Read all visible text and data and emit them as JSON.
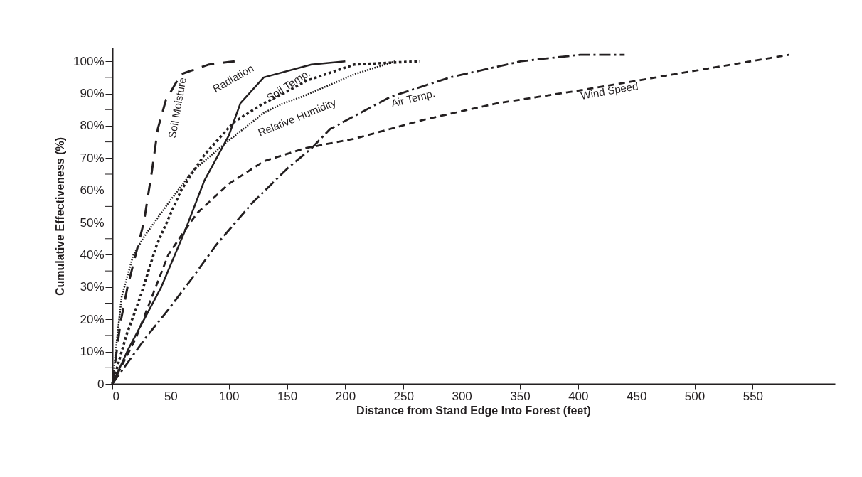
{
  "chart_data": {
    "type": "line",
    "xlabel": "Distance from Stand Edge Into Forest (feet)",
    "ylabel": "Cumulative Effectiveness (%)",
    "xlim": [
      0,
      620
    ],
    "ylim": [
      0,
      104
    ],
    "xticks": [
      0,
      50,
      100,
      150,
      200,
      250,
      300,
      350,
      400,
      450,
      500,
      550
    ],
    "yticks": [
      0,
      {
        "value": 5,
        "label": null
      },
      {
        "value": 10,
        "label": "10%"
      },
      {
        "value": 15,
        "label": null
      },
      {
        "value": 20,
        "label": "20%"
      },
      {
        "value": 25,
        "label": null
      },
      {
        "value": 30,
        "label": "30%"
      },
      {
        "value": 35,
        "label": null
      },
      {
        "value": 40,
        "label": "40%"
      },
      {
        "value": 45,
        "label": null
      },
      {
        "value": 50,
        "label": "50%"
      },
      {
        "value": 55,
        "label": null
      },
      {
        "value": 60,
        "label": "60%"
      },
      {
        "value": 65,
        "label": null
      },
      {
        "value": 70,
        "label": "70%"
      },
      {
        "value": 75,
        "label": null
      },
      {
        "value": 80,
        "label": "80%"
      },
      {
        "value": 85,
        "label": null
      },
      {
        "value": 90,
        "label": "90%"
      },
      {
        "value": 95,
        "label": null
      },
      {
        "value": 100,
        "label": "100%"
      }
    ],
    "grid": false,
    "legend": false,
    "marker": "none",
    "series": [
      {
        "name": "Soil Moisture",
        "color": "#231f20",
        "line_style": "dashed",
        "x": [
          0,
          7,
          13,
          20,
          27,
          34,
          39,
          46,
          59,
          83,
          105
        ],
        "values": [
          0,
          19,
          30,
          40,
          50,
          66,
          79,
          88,
          96,
          99,
          100
        ]
      },
      {
        "name": "Radiation",
        "color": "#231f20",
        "line_style": "solid",
        "x": [
          0,
          14,
          42,
          63,
          79,
          100,
          110,
          130,
          171,
          200
        ],
        "values": [
          0,
          11,
          30,
          48,
          63,
          77,
          87,
          95,
          99,
          100
        ]
      },
      {
        "name": "Soil Temp.",
        "color": "#231f20",
        "line_style": "dotted",
        "x": [
          0,
          12,
          24,
          38,
          59,
          79,
          104,
          130,
          147,
          167,
          208,
          264
        ],
        "values": [
          0,
          15,
          27,
          43,
          60,
          71,
          81,
          87,
          90,
          94,
          99,
          100
        ]
      },
      {
        "name": "Relative Humidity",
        "color": "#231f20",
        "line_style": "dotted",
        "x": [
          0,
          4,
          8,
          18,
          28,
          48,
          69,
          95,
          130,
          147,
          163,
          208,
          243
        ],
        "values": [
          0,
          14,
          27,
          40,
          46,
          56,
          66,
          74,
          84,
          87,
          89,
          96,
          100
        ]
      },
      {
        "name": "Air Temp.",
        "color": "#231f20",
        "line_style": "dashdot",
        "x": [
          0,
          28,
          48,
          69,
          89,
          120,
          151,
          171,
          187,
          239,
          290,
          351,
          402,
          440
        ],
        "values": [
          0,
          14,
          23,
          33,
          43,
          56,
          67,
          73,
          79,
          89,
          95,
          100,
          102,
          102
        ]
      },
      {
        "name": "Wind Speed",
        "color": "#231f20",
        "line_style": "dashed",
        "x": [
          0,
          20,
          34,
          48,
          63,
          73,
          100,
          130,
          165,
          208,
          269,
          331,
          402,
          467,
          581
        ],
        "values": [
          0,
          14,
          27,
          40,
          48,
          53,
          62,
          69,
          73,
          76,
          82,
          87,
          91,
          95,
          102
        ]
      }
    ]
  }
}
